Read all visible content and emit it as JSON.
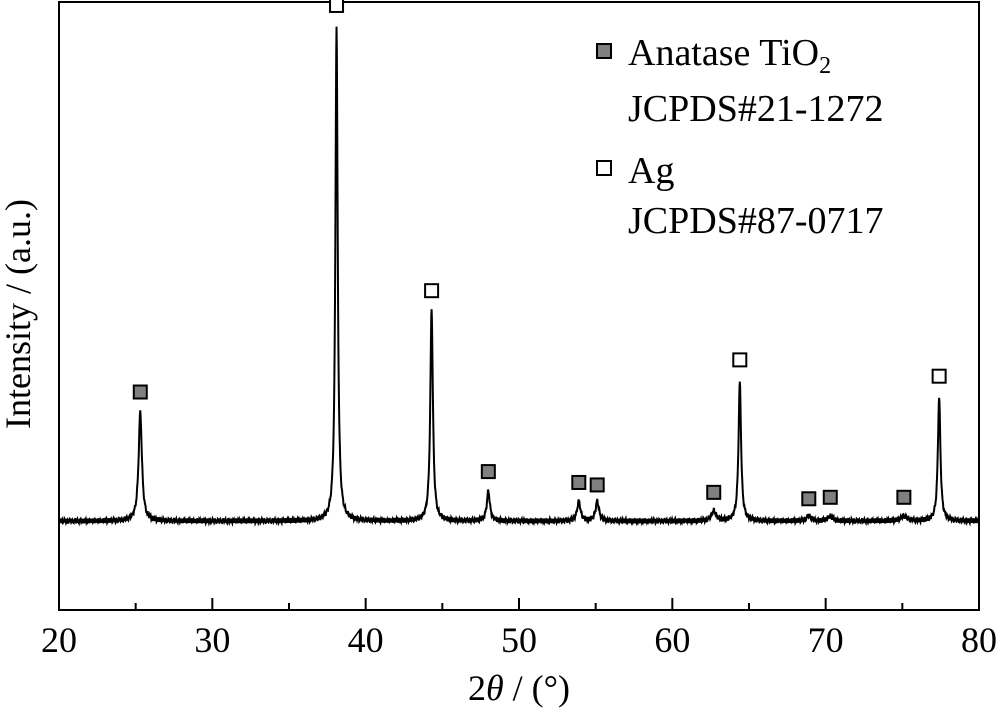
{
  "chart_data": {
    "type": "line",
    "xlabel_prefix": "2",
    "xlabel_symbol": "θ",
    "xlabel_suffix": " / (°)",
    "ylabel": "Intensity / (a.u.)",
    "xlim": [
      20,
      80
    ],
    "ylim": [
      -0.18,
      1.05
    ],
    "x_ticks": [
      20,
      30,
      40,
      50,
      60,
      70,
      80
    ],
    "x_tick_labels": [
      "20",
      "30",
      "40",
      "50",
      "60",
      "70",
      "80"
    ],
    "y_ticks_shown": false,
    "grid": false,
    "legend_position": "top-right",
    "series": [
      {
        "baseline": 0.0,
        "peaks": [
          {
            "x": 25.3,
            "height": 0.22,
            "width": 0.13,
            "phase": "anatase"
          },
          {
            "x": 38.1,
            "height": 1.0,
            "width": 0.09,
            "phase": "ag"
          },
          {
            "x": 44.3,
            "height": 0.43,
            "width": 0.1,
            "phase": "ag"
          },
          {
            "x": 48.0,
            "height": 0.06,
            "width": 0.12,
            "phase": "anatase"
          },
          {
            "x": 53.9,
            "height": 0.04,
            "width": 0.13,
            "phase": "anatase"
          },
          {
            "x": 55.1,
            "height": 0.04,
            "width": 0.13,
            "phase": "anatase"
          },
          {
            "x": 62.7,
            "height": 0.02,
            "width": 0.18,
            "phase": "anatase"
          },
          {
            "x": 64.4,
            "height": 0.28,
            "width": 0.1,
            "phase": "ag"
          },
          {
            "x": 68.9,
            "height": 0.01,
            "width": 0.18,
            "phase": "anatase"
          },
          {
            "x": 70.3,
            "height": 0.01,
            "width": 0.18,
            "phase": "anatase"
          },
          {
            "x": 75.1,
            "height": 0.01,
            "width": 0.25,
            "phase": "anatase"
          },
          {
            "x": 77.4,
            "height": 0.25,
            "width": 0.1,
            "phase": "ag"
          }
        ]
      }
    ],
    "markers": [
      {
        "x": 25.3,
        "y": 0.261,
        "phase": "anatase"
      },
      {
        "x": 38.1,
        "y": 1.043,
        "phase": "ag"
      },
      {
        "x": 44.3,
        "y": 0.466,
        "phase": "ag"
      },
      {
        "x": 48.0,
        "y": 0.1,
        "phase": "anatase"
      },
      {
        "x": 53.9,
        "y": 0.078,
        "phase": "anatase"
      },
      {
        "x": 55.1,
        "y": 0.073,
        "phase": "anatase"
      },
      {
        "x": 62.7,
        "y": 0.058,
        "phase": "anatase"
      },
      {
        "x": 64.4,
        "y": 0.326,
        "phase": "ag"
      },
      {
        "x": 68.9,
        "y": 0.045,
        "phase": "anatase"
      },
      {
        "x": 70.3,
        "y": 0.048,
        "phase": "anatase"
      },
      {
        "x": 75.1,
        "y": 0.048,
        "phase": "anatase"
      },
      {
        "x": 77.4,
        "y": 0.293,
        "phase": "ag"
      }
    ],
    "legend": [
      {
        "phase": "anatase",
        "label_main": "Anatase TiO",
        "label_sub": "2",
        "label_line2": "JCPDS#21-1272"
      },
      {
        "phase": "ag",
        "label_main": "Ag",
        "label_sub": "",
        "label_line2": "JCPDS#87-0717"
      }
    ],
    "colors": {
      "line": "#000000",
      "anatase_fill": "#808080",
      "ag_fill": "#ffffff",
      "marker_stroke": "#000000"
    }
  }
}
